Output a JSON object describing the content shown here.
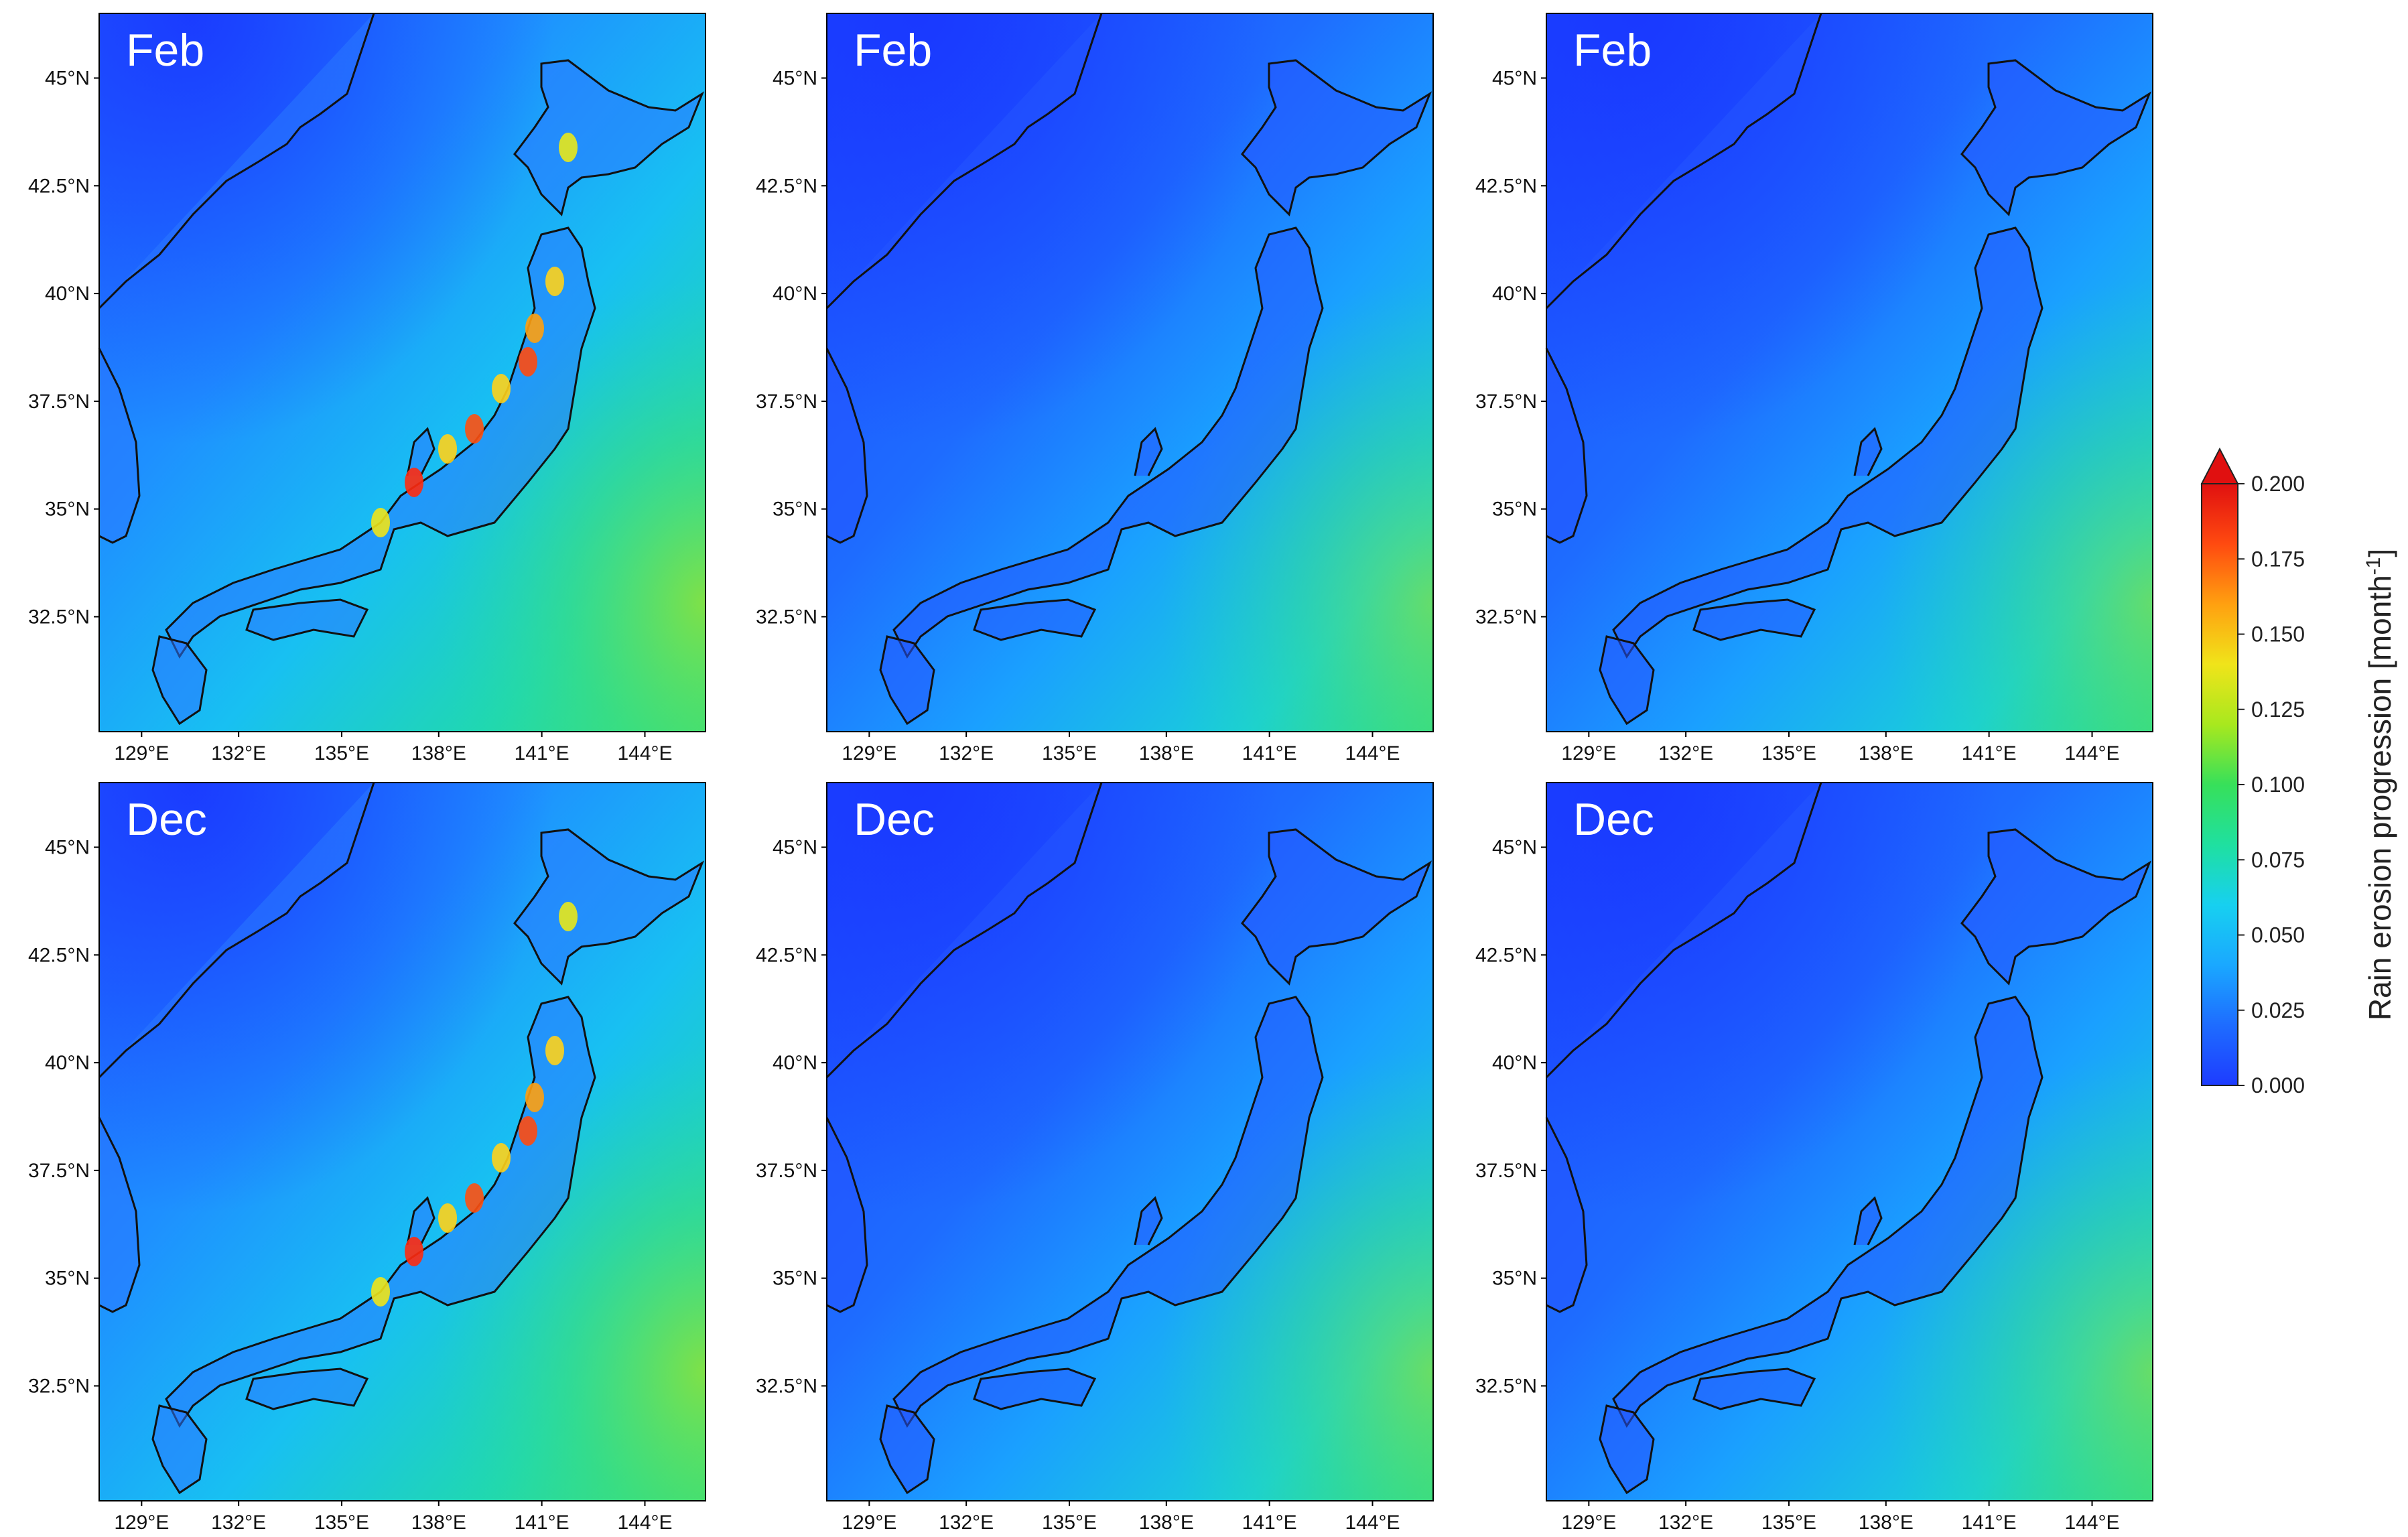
{
  "panels": [
    {
      "label": "Feb",
      "intensity": 1.0
    },
    {
      "label": "Feb",
      "intensity": 0.45
    },
    {
      "label": "Feb",
      "intensity": 0.42
    },
    {
      "label": "Dec",
      "intensity": 1.0
    },
    {
      "label": "Dec",
      "intensity": 0.55
    },
    {
      "label": "Dec",
      "intensity": 0.5
    }
  ],
  "axes": {
    "x_ticks": [
      "129°E",
      "132°E",
      "135°E",
      "138°E",
      "141°E",
      "144°E"
    ],
    "y_ticks": [
      "45°N",
      "42.5°N",
      "40°N",
      "37.5°N",
      "35°N",
      "32.5°N"
    ]
  },
  "colorbar": {
    "title": "Rain erosion progression [month",
    "title_sup": "-1",
    "title_end": "]",
    "ticks": [
      "0.200",
      "0.175",
      "0.150",
      "0.125",
      "0.100",
      "0.075",
      "0.050",
      "0.025",
      "0.000"
    ],
    "range": [
      0,
      0.2
    ],
    "extend": "max",
    "colors": [
      "#1e3cff",
      "#1e6cff",
      "#1aa8ff",
      "#17d0f0",
      "#1fe0a0",
      "#37e05a",
      "#a8e81e",
      "#f0e41a",
      "#ffa010",
      "#ff4a10",
      "#e01010"
    ]
  }
}
